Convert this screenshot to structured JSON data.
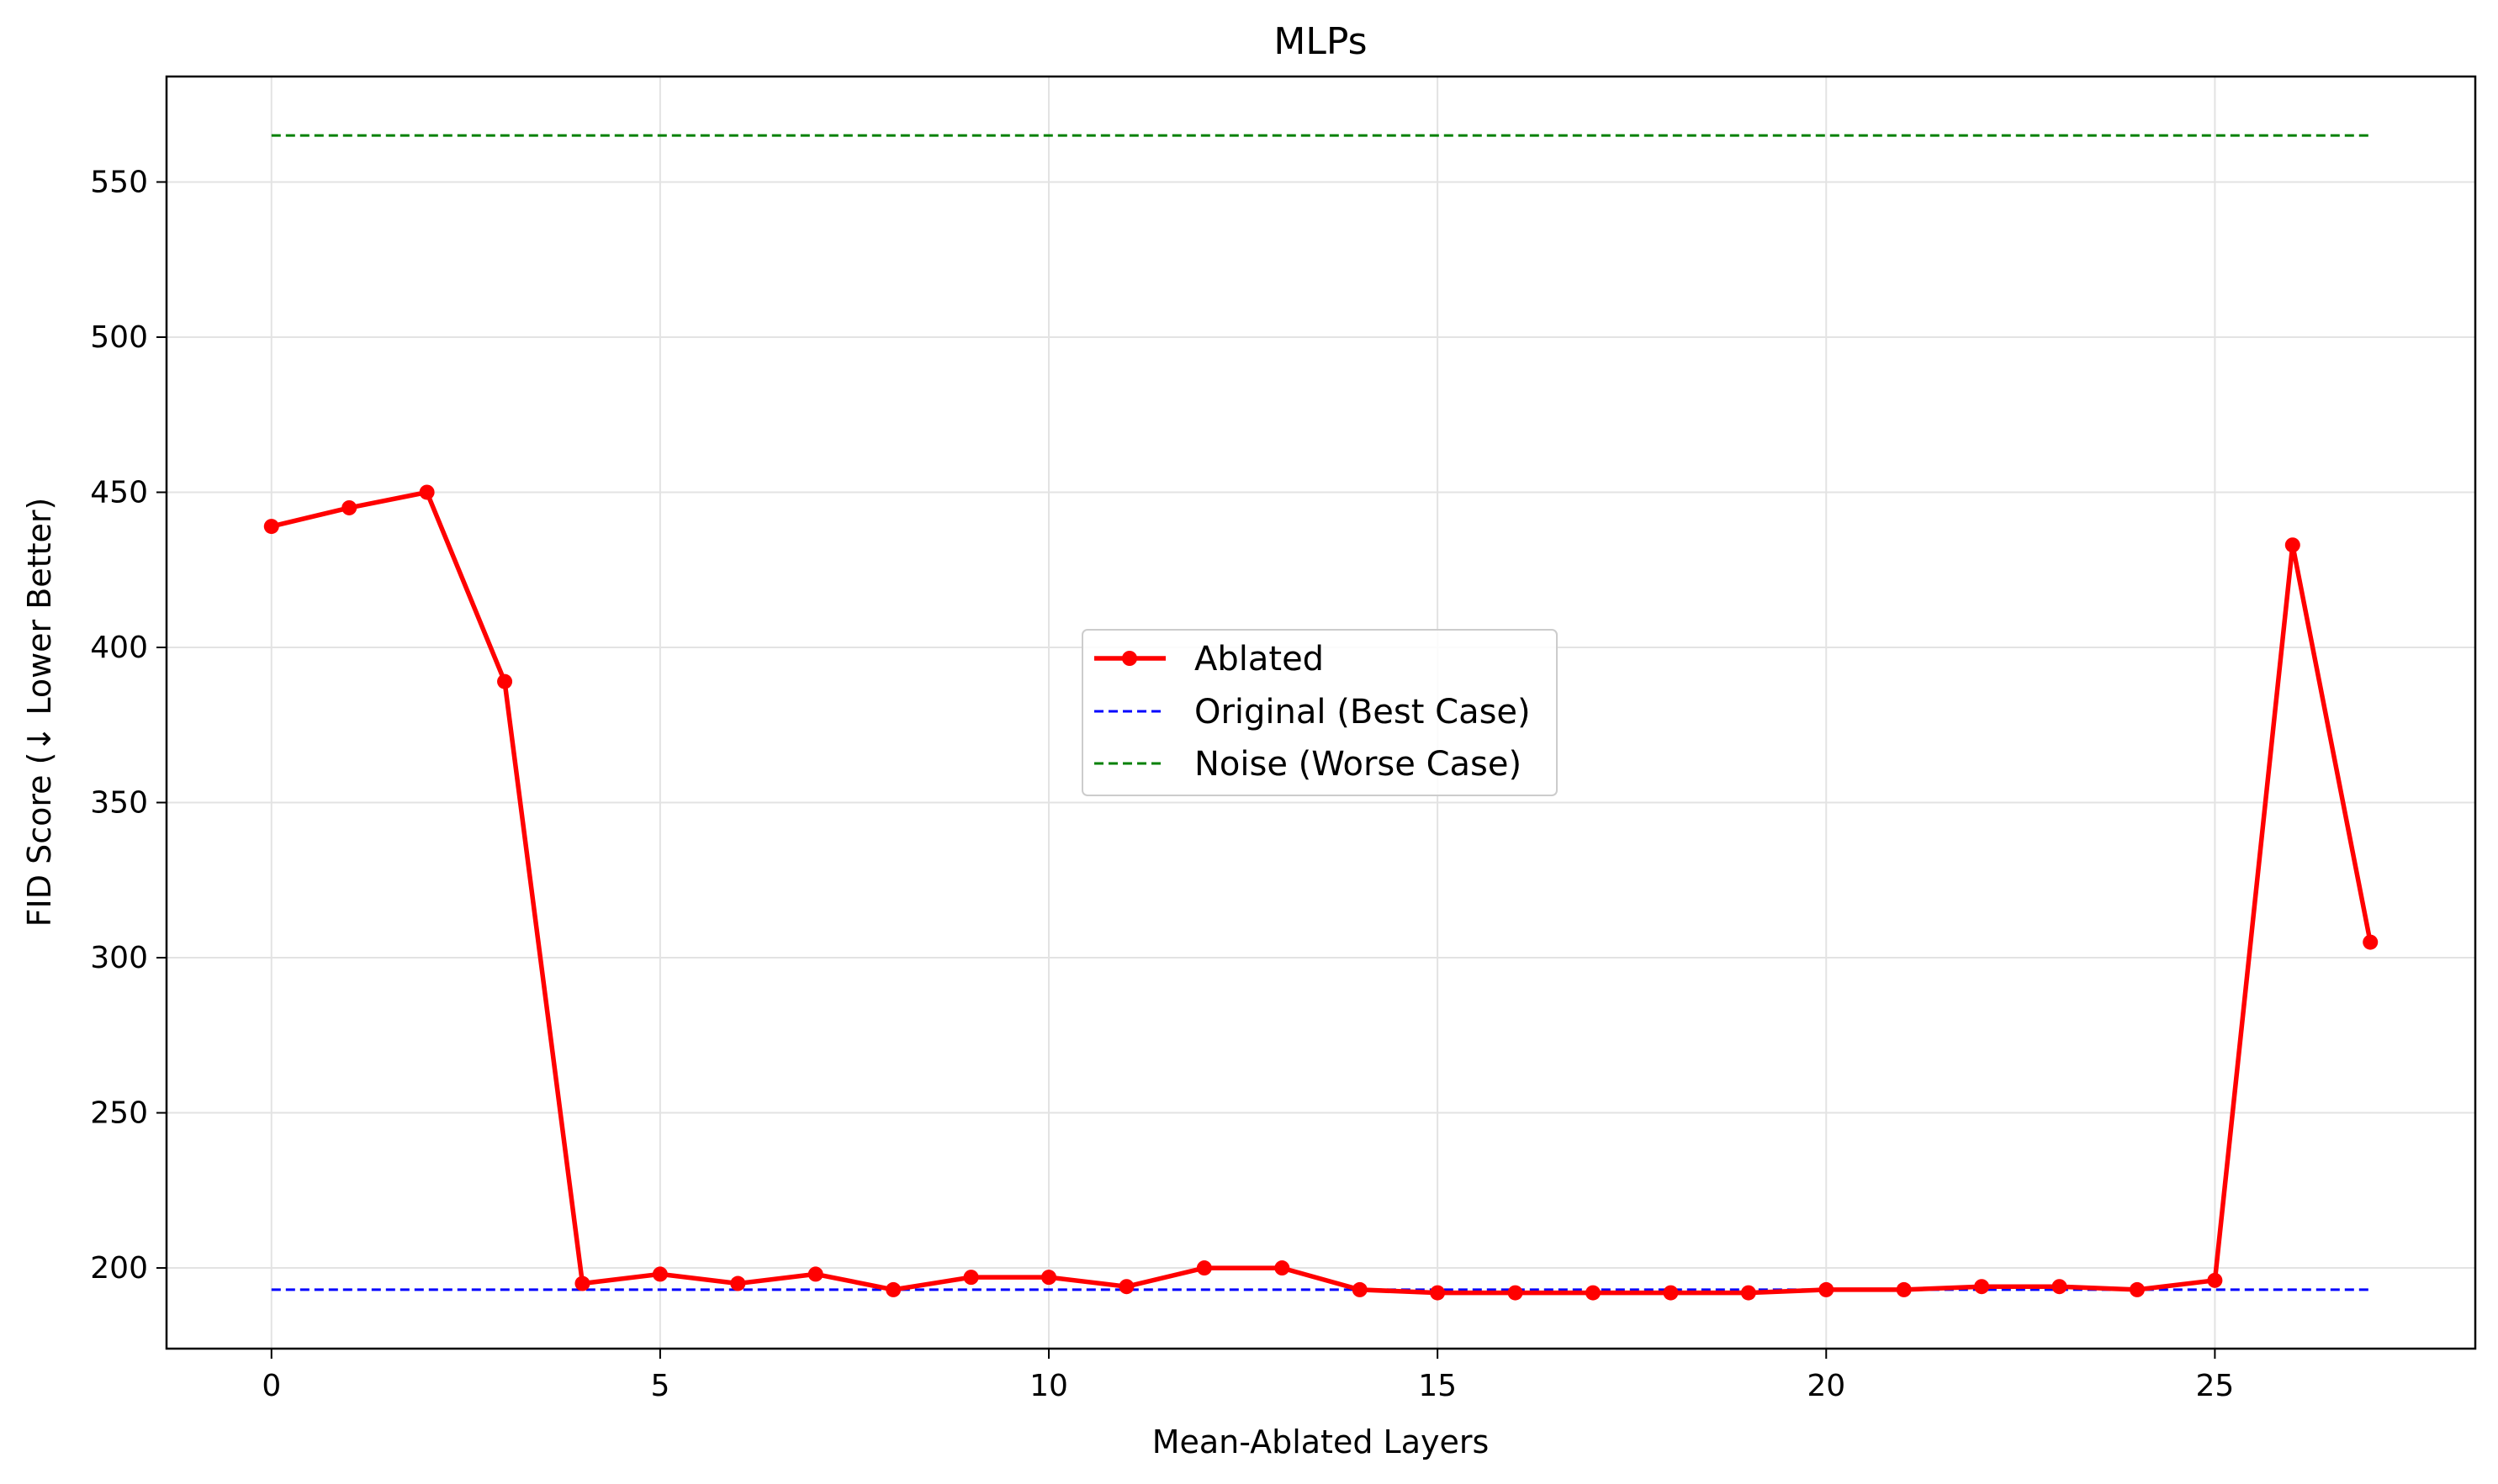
{
  "chart_data": {
    "type": "line",
    "title": "MLPs",
    "xlabel": "Mean-Ablated Layers",
    "ylabel": "FID Score (↓ Lower Better)",
    "xlim": [
      -1.35,
      28.35
    ],
    "ylim": [
      174,
      584
    ],
    "xticks": [
      0,
      5,
      10,
      15,
      20,
      25
    ],
    "yticks": [
      200,
      250,
      300,
      350,
      400,
      450,
      500,
      550
    ],
    "grid": true,
    "legend_position": "center",
    "series": [
      {
        "name": "Ablated",
        "color": "#ff0000",
        "style": "solid-marker",
        "x": [
          0,
          1,
          2,
          3,
          4,
          5,
          6,
          7,
          8,
          9,
          10,
          11,
          12,
          13,
          14,
          15,
          16,
          17,
          18,
          19,
          20,
          21,
          22,
          23,
          24,
          25,
          26,
          27
        ],
        "values": [
          439,
          445,
          450,
          389,
          195,
          198,
          195,
          198,
          193,
          197,
          197,
          194,
          200,
          200,
          193,
          192,
          192,
          192,
          192,
          192,
          193,
          193,
          194,
          194,
          193,
          196,
          433,
          305
        ]
      },
      {
        "name": "Original (Best Case)",
        "color": "#0000ff",
        "style": "dashed",
        "x": [
          0,
          27
        ],
        "values": [
          193,
          193
        ]
      },
      {
        "name": "Noise (Worse Case)",
        "color": "#008000",
        "style": "dashed",
        "x": [
          0,
          27
        ],
        "values": [
          565,
          565
        ]
      }
    ]
  }
}
